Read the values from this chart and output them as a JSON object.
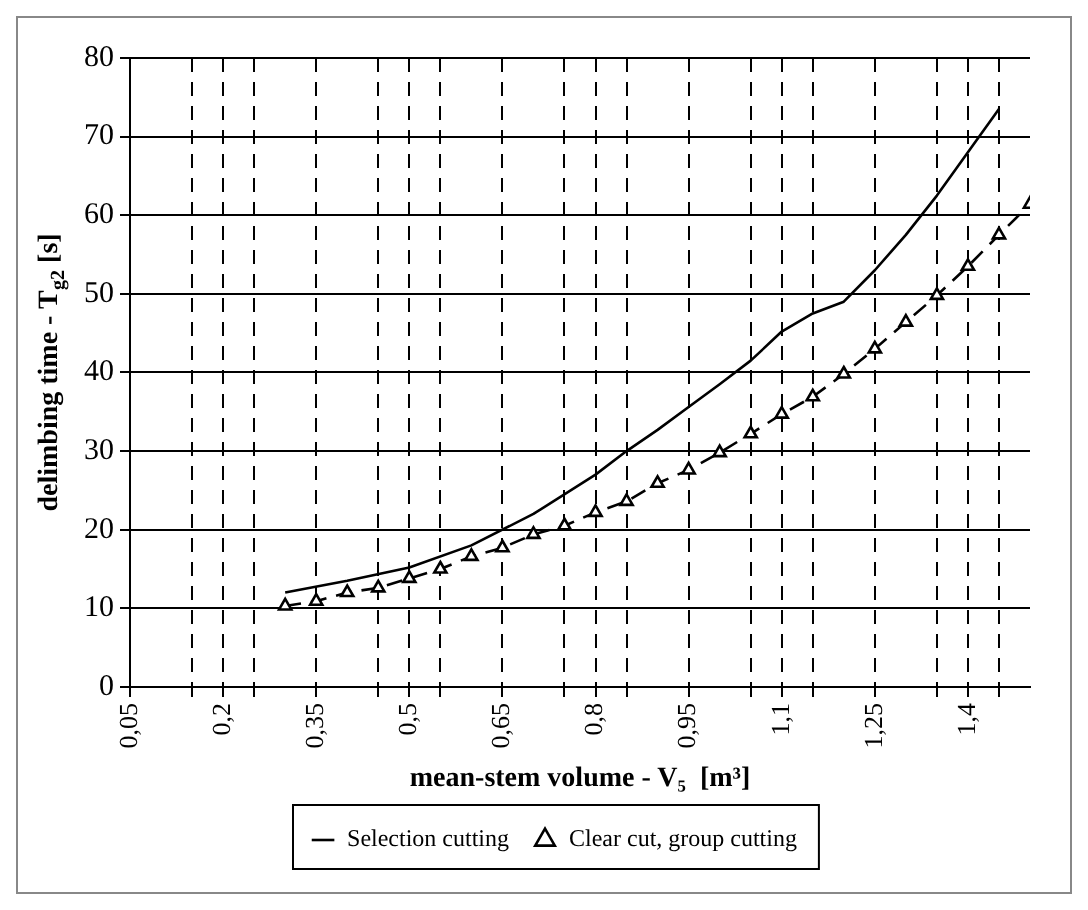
{
  "chart_data": {
    "type": "line",
    "xlabel": "mean-stem volume - V₅  [m³]",
    "ylabel": "delimbing time - T$_{g2}$ [s]",
    "xlim": [
      0.05,
      1.5
    ],
    "xticks": [
      {
        "value": 0.05,
        "label": "0,05"
      },
      {
        "value": 0.15,
        "label": null
      },
      {
        "value": 0.2,
        "label": "0,2"
      },
      {
        "value": 0.25,
        "label": null
      },
      {
        "value": 0.35,
        "label": "0,35"
      },
      {
        "value": 0.45,
        "label": null
      },
      {
        "value": 0.5,
        "label": "0,5"
      },
      {
        "value": 0.55,
        "label": null
      },
      {
        "value": 0.65,
        "label": "0,65"
      },
      {
        "value": 0.75,
        "label": null
      },
      {
        "value": 0.8,
        "label": "0,8"
      },
      {
        "value": 0.85,
        "label": null
      },
      {
        "value": 0.95,
        "label": "0,95"
      },
      {
        "value": 1.05,
        "label": null
      },
      {
        "value": 1.1,
        "label": "1,1"
      },
      {
        "value": 1.15,
        "label": null
      },
      {
        "value": 1.25,
        "label": "1,25"
      },
      {
        "value": 1.35,
        "label": null
      },
      {
        "value": 1.4,
        "label": "1,4"
      },
      {
        "value": 1.45,
        "label": null
      }
    ],
    "ylim": [
      0,
      80
    ],
    "yticks": [
      0,
      10,
      20,
      30,
      40,
      50,
      60,
      70,
      80
    ],
    "grid": true,
    "legend": "bottom",
    "series": [
      {
        "name": "Selection cutting",
        "color": "#000000",
        "line_style": "solid",
        "marker": "none",
        "x": [
          0.3,
          0.4,
          0.5,
          0.6,
          0.7,
          0.8,
          0.85,
          0.9,
          0.95,
          1.0,
          1.05,
          1.1,
          1.15,
          1.2,
          1.25,
          1.3,
          1.35,
          1.4,
          1.45
        ],
        "values": [
          12,
          13.5,
          15.2,
          18,
          22,
          27,
          30,
          32.7,
          35.6,
          38.5,
          41.5,
          45.2,
          47.5,
          49,
          53,
          57.5,
          62.5,
          68,
          73.5
        ]
      },
      {
        "name": "Clear cut, group cutting",
        "color": "#000000",
        "line_style": "dashed",
        "marker": "triangle",
        "x": [
          0.3,
          0.35,
          0.4,
          0.45,
          0.5,
          0.55,
          0.6,
          0.65,
          0.7,
          0.75,
          0.8,
          0.85,
          0.9,
          0.95,
          1.0,
          1.05,
          1.1,
          1.15,
          1.2,
          1.25,
          1.3,
          1.35,
          1.4,
          1.45,
          1.5
        ],
        "values": [
          10.3,
          10.9,
          12,
          12.6,
          13.8,
          15,
          16.6,
          17.7,
          19.4,
          20.5,
          22.2,
          23.6,
          25.9,
          27.6,
          29.8,
          32.2,
          34.7,
          36.9,
          39.8,
          43,
          46.4,
          49.8,
          53.5,
          57.5,
          61.4
        ]
      }
    ]
  }
}
